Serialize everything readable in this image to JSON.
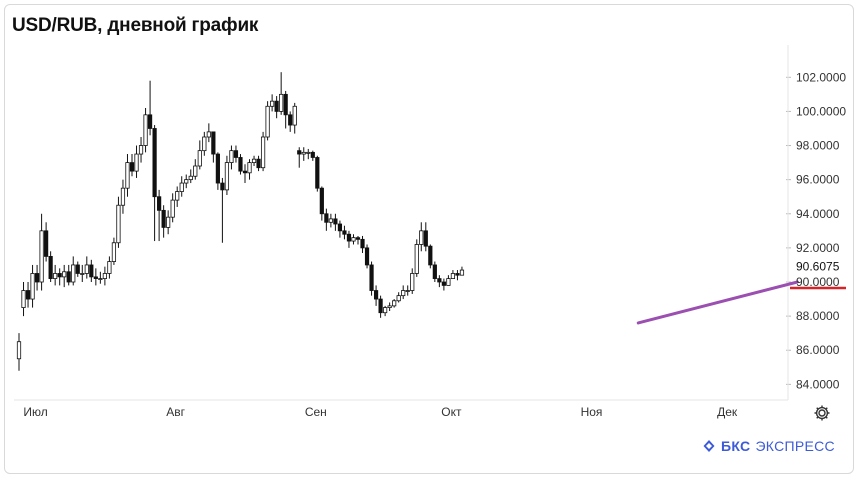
{
  "title": "USD/RUB, дневной график",
  "brand": {
    "bold": "БКС",
    "rest": "ЭКСПРЕСС"
  },
  "colors": {
    "trendline": "#9b4fb0",
    "price_line": "#d8222a",
    "candle_up": "#ffffff",
    "candle_down": "#111111",
    "brand": "#3d5bd9"
  },
  "chart_data": {
    "type": "candlestick",
    "title": "USD/RUB, дневной график",
    "ylim": [
      83.2,
      103.6
    ],
    "yticks": [
      84,
      86,
      88,
      90,
      92,
      94,
      96,
      98,
      100,
      102
    ],
    "ytick_labels": [
      "84.0000",
      "86.0000",
      "88.0000",
      "90.0000",
      "92.0000",
      "94.0000",
      "96.0000",
      "98.0000",
      "100.0000",
      "102.0000"
    ],
    "xticks": [
      {
        "label": "Июл",
        "index": 3
      },
      {
        "label": "Авг",
        "index": 34
      },
      {
        "label": "Сен",
        "index": 65
      },
      {
        "label": "Окт",
        "index": 95
      },
      {
        "label": "Ноя",
        "index": 126
      },
      {
        "label": "Дек",
        "index": 156
      }
    ],
    "current_price": 90.6075,
    "current_price_label": "90.6075",
    "close": [
      86.5,
      89.5,
      89.0,
      90.5,
      90.0,
      93.0,
      91.5,
      90.2,
      90.5,
      90.3,
      90.6,
      90.0,
      91.0,
      90.5,
      90.5,
      91.0,
      90.3,
      90.2,
      90.2,
      90.5,
      91.2,
      92.3,
      94.5,
      95.5,
      97.0,
      96.5,
      97.5,
      98.0,
      99.8,
      99.0,
      95.0,
      94.2,
      93.2,
      93.8,
      94.8,
      95.3,
      95.8,
      96.0,
      96.2,
      96.8,
      97.7,
      98.5,
      98.8,
      97.5,
      95.8,
      95.4,
      97.0,
      97.7,
      97.3,
      96.5,
      96.4,
      97.0,
      97.2,
      96.7,
      98.5,
      100.3,
      100.6,
      100.0,
      101.0,
      99.8,
      99.2,
      100.3,
      97.5,
      97.6,
      97.6,
      97.3,
      95.5,
      94.0,
      93.5,
      93.7,
      93.4,
      93.0,
      92.8,
      92.4,
      92.6,
      92.5,
      92.0,
      91.0,
      89.5,
      89.0,
      88.2,
      88.5,
      88.6,
      88.9,
      89.2,
      89.5,
      89.5,
      90.5,
      92.2,
      93.0,
      92.1,
      91.0,
      90.2,
      90.0,
      89.8,
      90.2,
      90.5,
      90.4,
      90.7
    ],
    "open": [
      85.5,
      88.5,
      89.5,
      89.0,
      90.5,
      90.0,
      93.0,
      91.5,
      90.2,
      90.5,
      90.3,
      90.6,
      90.0,
      91.0,
      90.5,
      90.5,
      91.0,
      90.3,
      90.2,
      90.2,
      90.5,
      91.2,
      92.3,
      94.5,
      95.5,
      97.0,
      96.5,
      97.5,
      98.0,
      99.8,
      99.0,
      95.0,
      94.2,
      93.2,
      93.8,
      94.8,
      95.3,
      95.8,
      96.0,
      96.2,
      96.8,
      97.7,
      98.5,
      98.8,
      97.5,
      95.8,
      95.4,
      97.0,
      97.7,
      97.3,
      96.5,
      96.4,
      97.0,
      97.2,
      96.7,
      98.5,
      100.3,
      100.6,
      100.0,
      101.0,
      99.8,
      99.2,
      97.7,
      97.5,
      97.6,
      97.6,
      97.3,
      95.5,
      94.0,
      93.5,
      93.7,
      93.4,
      93.0,
      92.8,
      92.4,
      92.6,
      92.5,
      92.0,
      91.0,
      89.5,
      89.0,
      88.2,
      88.5,
      88.6,
      88.9,
      89.2,
      89.5,
      89.5,
      90.5,
      92.2,
      93.0,
      92.1,
      91.0,
      90.2,
      90.0,
      89.8,
      90.2,
      90.5,
      90.4
    ],
    "high": [
      87.0,
      90.0,
      90.0,
      91.0,
      91.0,
      94.0,
      93.5,
      91.8,
      91.0,
      90.8,
      91.0,
      91.0,
      91.5,
      91.2,
      91.0,
      91.5,
      91.3,
      90.8,
      90.6,
      90.9,
      91.5,
      92.6,
      95.0,
      96.0,
      97.5,
      97.5,
      98.0,
      98.5,
      100.2,
      101.8,
      99.2,
      95.4,
      94.5,
      94.2,
      95.2,
      95.6,
      96.2,
      96.3,
      96.6,
      97.2,
      98.3,
      98.8,
      99.3,
      98.8,
      97.6,
      96.1,
      97.4,
      98.0,
      98.0,
      97.5,
      96.9,
      97.2,
      97.4,
      97.4,
      98.8,
      100.6,
      101.0,
      100.9,
      102.3,
      101.2,
      100.0,
      100.5,
      97.9,
      97.9,
      97.8,
      97.7,
      97.4,
      95.6,
      94.3,
      94.0,
      94.0,
      93.6,
      93.3,
      93.0,
      92.8,
      92.7,
      92.7,
      92.2,
      91.2,
      89.8,
      89.2,
      88.6,
      88.8,
      89.0,
      89.4,
      89.8,
      89.8,
      90.8,
      92.5,
      93.5,
      93.5,
      92.2,
      91.2,
      90.4,
      90.2,
      90.4,
      90.7,
      90.7,
      90.9
    ],
    "low": [
      84.8,
      88.0,
      88.5,
      88.5,
      89.5,
      89.5,
      91.2,
      90.0,
      89.8,
      89.8,
      89.7,
      89.8,
      89.8,
      90.3,
      90.0,
      90.2,
      90.0,
      89.8,
      89.9,
      89.8,
      90.2,
      91.0,
      92.0,
      94.0,
      95.0,
      96.2,
      96.1,
      97.0,
      97.6,
      98.6,
      92.4,
      92.4,
      92.6,
      92.8,
      93.5,
      94.4,
      95.0,
      95.5,
      95.8,
      96.0,
      96.6,
      97.4,
      98.2,
      97.0,
      95.4,
      92.3,
      95.1,
      96.6,
      97.0,
      96.3,
      95.8,
      96.0,
      96.8,
      96.5,
      96.5,
      98.3,
      100.0,
      99.6,
      99.8,
      99.0,
      98.8,
      98.7,
      96.7,
      97.1,
      97.2,
      97.1,
      95.3,
      93.6,
      93.0,
      93.2,
      93.0,
      92.6,
      92.5,
      92.0,
      92.2,
      92.2,
      91.7,
      90.8,
      89.2,
      88.6,
      87.9,
      88.0,
      88.3,
      88.5,
      88.8,
      89.0,
      89.2,
      89.3,
      90.3,
      91.8,
      91.8,
      90.8,
      90.0,
      89.7,
      89.5,
      89.9,
      90.2,
      90.1,
      90.4
    ]
  }
}
